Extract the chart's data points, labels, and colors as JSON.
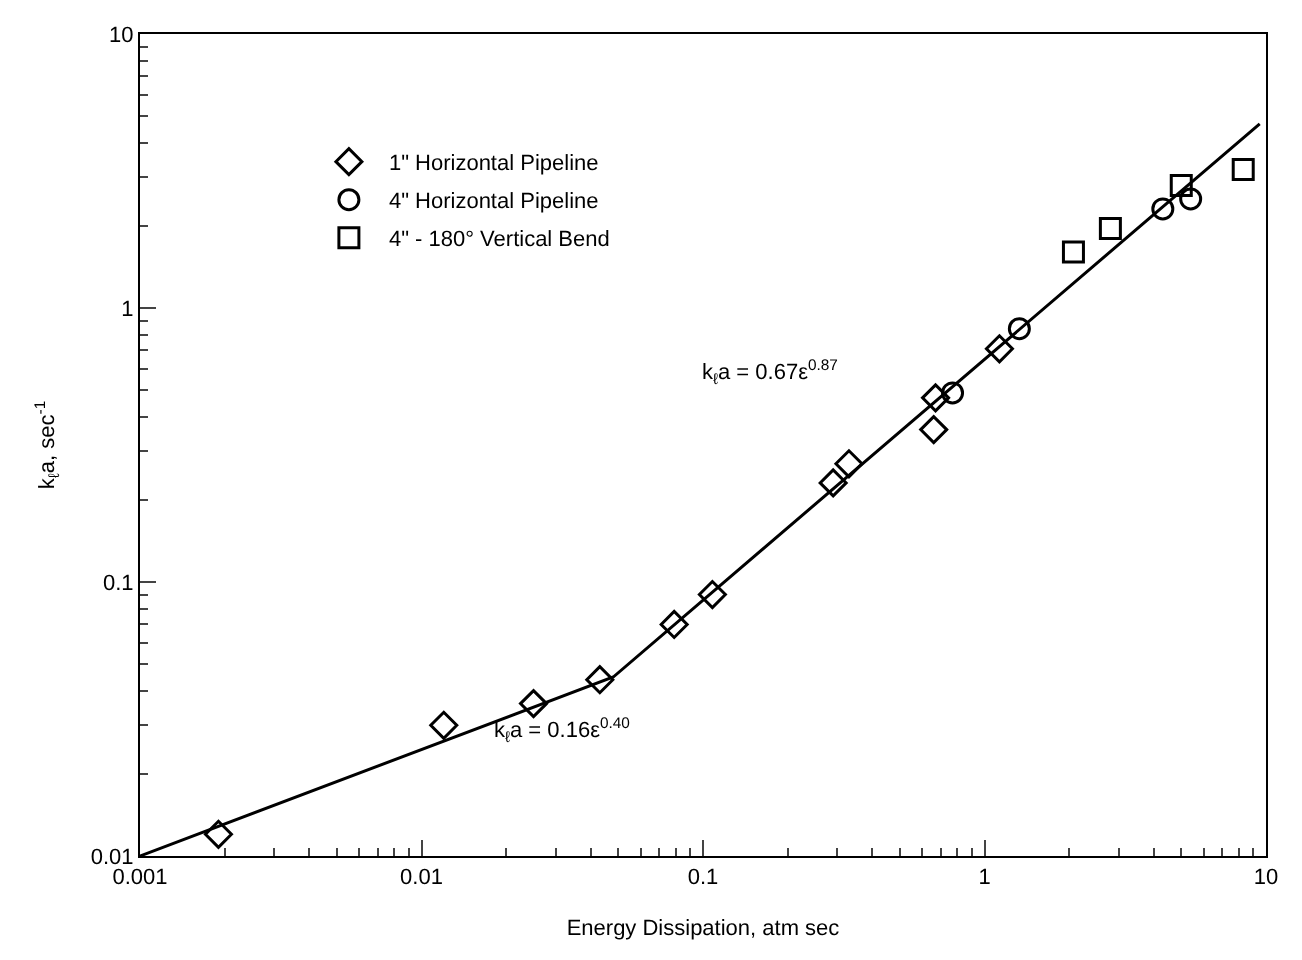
{
  "chart_data": {
    "type": "scatter",
    "xlabel": "Energy Dissipation, atm sec",
    "ylabel": "k$_{ℓ}$a, sec$^{-1}$",
    "log": "xy",
    "legend": "top left",
    "xlim": [
      0.001,
      10
    ],
    "ylim": [
      0.01,
      10
    ],
    "xticks": [
      {
        "value": 0.001,
        "label": "0.001"
      },
      {
        "value": 0.01,
        "label": "0.01"
      },
      {
        "value": 0.1,
        "label": "0.1"
      },
      1,
      10
    ],
    "yticks": [
      {
        "value": 0.01,
        "label": "0.01"
      },
      {
        "value": 0.1,
        "label": "0.1"
      },
      1,
      10
    ],
    "series": [
      {
        "name": "1\" Horizontal Pipeline",
        "color": "#000000",
        "marker": "diamond",
        "x": [
          0.0019,
          0.012,
          0.025,
          0.043,
          0.079,
          0.108,
          0.29,
          0.33,
          0.66,
          0.67,
          1.13
        ],
        "values": [
          0.012,
          0.03,
          0.036,
          0.044,
          0.07,
          0.09,
          0.23,
          0.27,
          0.36,
          0.47,
          0.71
        ]
      },
      {
        "name": "4\" Horizontal Pipeline",
        "color": "#000000",
        "marker": "circle",
        "x": [
          0.77,
          1.33,
          4.3,
          5.4
        ],
        "values": [
          0.49,
          0.84,
          2.3,
          2.5
        ]
      },
      {
        "name": "4\" - 180° Vertical Bend",
        "color": "#000000",
        "marker": "square",
        "x": [
          2.07,
          2.8,
          5.0,
          8.3
        ],
        "values": [
          1.6,
          1.95,
          2.8,
          3.2
        ]
      },
      {
        "type": "line",
        "color": "#000000",
        "marker": "none",
        "line_style": "solid",
        "x": [
          0.001,
          0.048,
          9.5
        ],
        "values": [
          0.01,
          0.045,
          4.7
        ]
      }
    ],
    "annotations": [
      "k$_{ℓ}$a = 0.16ε$^{0.40}$",
      "k$_{ℓ}$a = 0.67ε$^{0.87}$"
    ]
  }
}
